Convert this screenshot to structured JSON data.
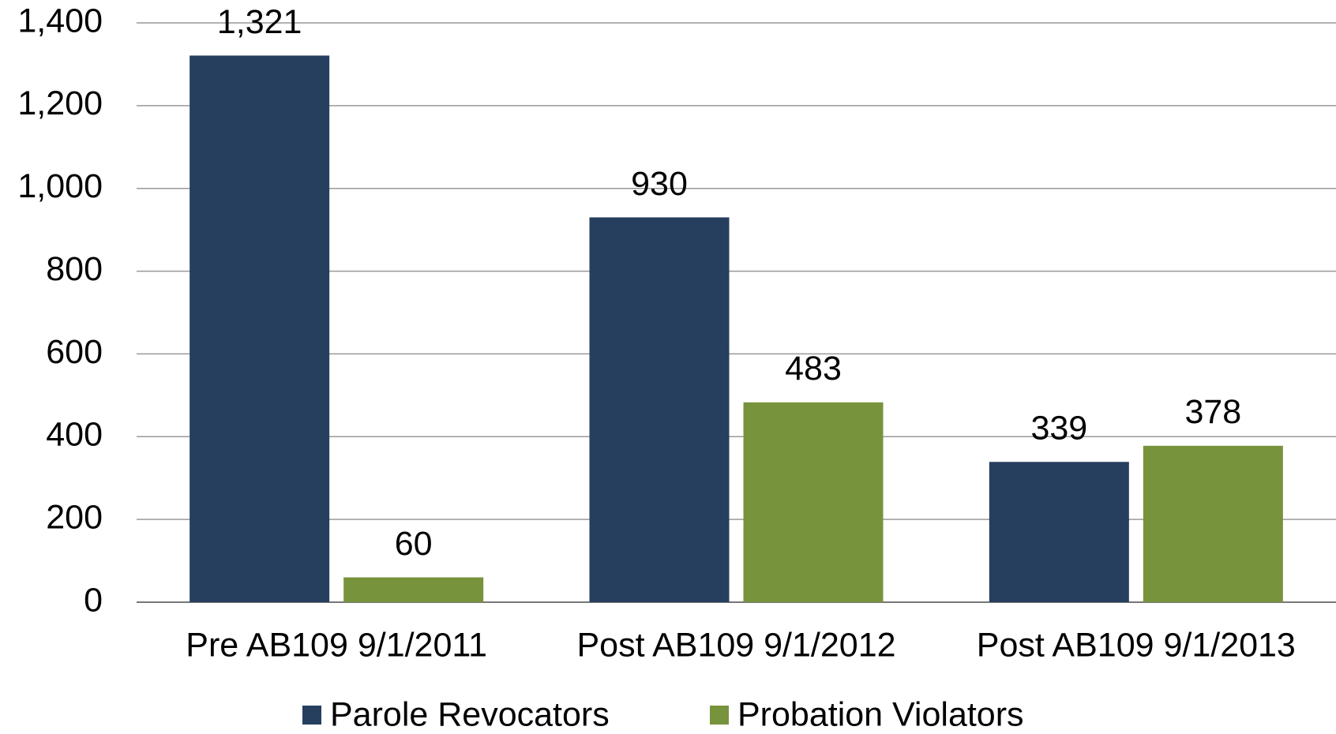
{
  "chart_data": {
    "type": "bar",
    "categories": [
      "Pre AB109 9/1/2011",
      "Post AB109 9/1/2012",
      "Post AB109 9/1/2013"
    ],
    "series": [
      {
        "name": "Parole Revocators",
        "color": "#263f5f",
        "values": [
          1321,
          930,
          339
        ],
        "value_labels": [
          "1,321",
          "930",
          "339"
        ]
      },
      {
        "name": "Probation Violators",
        "color": "#77933c",
        "values": [
          60,
          483,
          378
        ],
        "value_labels": [
          "60",
          "483",
          "378"
        ]
      }
    ],
    "ylim": [
      0,
      1400
    ],
    "yticks": [
      0,
      200,
      400,
      600,
      800,
      {
        "value": 1000,
        "label": "1,000"
      },
      {
        "value": 1200,
        "label": "1,200"
      },
      {
        "value": 1400,
        "label": "1,400"
      }
    ],
    "grid": true,
    "legend": "bottom"
  }
}
